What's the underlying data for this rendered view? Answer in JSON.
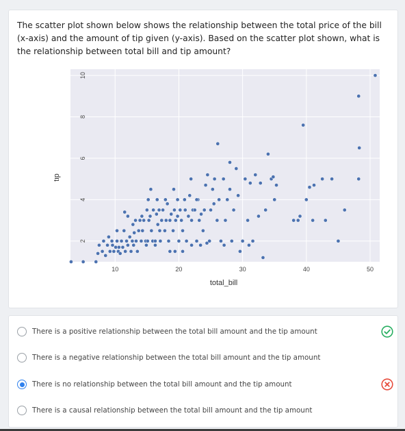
{
  "question": {
    "text": "The scatter plot shown below shows the relationship between the total price of the bill (x-axis) and the amount of tip given (y-axis). Based on the scatter plot shown, what is the relationship between total bill and tip amount?"
  },
  "chart_data": {
    "type": "scatter",
    "xlabel": "total_bill",
    "ylabel": "tip",
    "xlim": [
      3,
      51.5
    ],
    "ylim": [
      1,
      10.3
    ],
    "xticks": [
      "10",
      "20",
      "30",
      "40",
      "50"
    ],
    "yticks": [
      "2",
      "4",
      "6",
      "8",
      "10"
    ],
    "grid": true,
    "colors": {
      "point": "#4c72b0",
      "point_edge": "#ffffff",
      "background": "#eaeaf2",
      "grid": "#ffffff"
    },
    "points": [
      [
        3.1,
        1.0
      ],
      [
        5.0,
        1.0
      ],
      [
        7.0,
        1.0
      ],
      [
        7.3,
        1.4
      ],
      [
        7.5,
        1.8
      ],
      [
        8.0,
        1.5
      ],
      [
        8.2,
        2.0
      ],
      [
        8.5,
        1.3
      ],
      [
        8.8,
        1.8
      ],
      [
        9.0,
        2.2
      ],
      [
        9.2,
        1.5
      ],
      [
        9.5,
        2.0
      ],
      [
        9.6,
        1.8
      ],
      [
        9.8,
        1.5
      ],
      [
        10.1,
        1.7
      ],
      [
        10.3,
        2.0
      ],
      [
        10.5,
        1.5
      ],
      [
        10.6,
        1.7
      ],
      [
        10.8,
        1.4
      ],
      [
        11.0,
        2.0
      ],
      [
        11.2,
        1.7
      ],
      [
        11.4,
        2.5
      ],
      [
        11.6,
        1.5
      ],
      [
        11.8,
        2.0
      ],
      [
        12.0,
        1.8
      ],
      [
        12.3,
        2.2
      ],
      [
        12.5,
        1.5
      ],
      [
        12.7,
        2.0
      ],
      [
        12.9,
        1.8
      ],
      [
        13.0,
        2.4
      ],
      [
        13.3,
        2.0
      ],
      [
        13.5,
        1.5
      ],
      [
        13.7,
        2.5
      ],
      [
        13.9,
        3.0
      ],
      [
        14.1,
        2.0
      ],
      [
        14.3,
        2.5
      ],
      [
        14.5,
        3.0
      ],
      [
        14.8,
        2.0
      ],
      [
        15.0,
        3.5
      ],
      [
        15.1,
        2.0
      ],
      [
        15.3,
        3.0
      ],
      [
        15.5,
        3.2
      ],
      [
        15.7,
        2.5
      ],
      [
        15.9,
        2.0
      ],
      [
        16.0,
        3.5
      ],
      [
        16.3,
        2.0
      ],
      [
        16.5,
        3.3
      ],
      [
        16.7,
        2.8
      ],
      [
        16.9,
        3.5
      ],
      [
        17.1,
        2.0
      ],
      [
        17.3,
        3.0
      ],
      [
        17.5,
        3.5
      ],
      [
        17.8,
        2.5
      ],
      [
        18.0,
        3.0
      ],
      [
        18.2,
        3.8
      ],
      [
        18.4,
        2.0
      ],
      [
        18.6,
        3.0
      ],
      [
        18.8,
        3.3
      ],
      [
        19.1,
        2.5
      ],
      [
        19.3,
        3.5
      ],
      [
        19.5,
        3.0
      ],
      [
        19.8,
        4.0
      ],
      [
        20.0,
        2.0
      ],
      [
        20.2,
        3.5
      ],
      [
        20.4,
        3.0
      ],
      [
        20.6,
        2.5
      ],
      [
        20.9,
        4.0
      ],
      [
        21.0,
        3.5
      ],
      [
        21.2,
        2.0
      ],
      [
        21.5,
        3.2
      ],
      [
        21.7,
        4.2
      ],
      [
        22.0,
        3.0
      ],
      [
        22.2,
        3.5
      ],
      [
        22.5,
        3.5
      ],
      [
        22.8,
        2.0
      ],
      [
        23.0,
        4.0
      ],
      [
        23.2,
        3.0
      ],
      [
        23.5,
        3.3
      ],
      [
        23.8,
        2.5
      ],
      [
        24.0,
        3.5
      ],
      [
        24.2,
        4.7
      ],
      [
        24.5,
        5.2
      ],
      [
        24.8,
        2.0
      ],
      [
        25.0,
        3.5
      ],
      [
        25.3,
        4.5
      ],
      [
        25.6,
        5.0
      ],
      [
        26.0,
        3.0
      ],
      [
        26.3,
        4.0
      ],
      [
        26.6,
        2.0
      ],
      [
        27.0,
        5.0
      ],
      [
        27.3,
        3.0
      ],
      [
        27.6,
        4.0
      ],
      [
        28.0,
        4.5
      ],
      [
        28.3,
        2.0
      ],
      [
        28.6,
        3.5
      ],
      [
        29.0,
        5.5
      ],
      [
        29.3,
        4.2
      ],
      [
        29.6,
        1.5
      ],
      [
        30.0,
        2.0
      ],
      [
        30.4,
        5.0
      ],
      [
        30.8,
        3.0
      ],
      [
        31.2,
        4.8
      ],
      [
        31.6,
        2.0
      ],
      [
        32.0,
        5.2
      ],
      [
        32.5,
        3.2
      ],
      [
        32.8,
        4.8
      ],
      [
        33.2,
        1.2
      ],
      [
        33.6,
        3.5
      ],
      [
        34.0,
        6.2
      ],
      [
        34.5,
        5.0
      ],
      [
        35.0,
        4.0
      ],
      [
        35.3,
        4.7
      ],
      [
        38.0,
        3.0
      ],
      [
        38.7,
        3.0
      ],
      [
        39.0,
        3.2
      ],
      [
        40.0,
        4.0
      ],
      [
        40.5,
        4.6
      ],
      [
        41.0,
        3.0
      ],
      [
        41.2,
        4.7
      ],
      [
        42.5,
        5.0
      ],
      [
        43.0,
        3.0
      ],
      [
        44.0,
        5.0
      ],
      [
        45.0,
        2.0
      ],
      [
        46.0,
        3.5
      ],
      [
        48.2,
        5.0
      ],
      [
        48.3,
        6.5
      ],
      [
        48.2,
        9.0
      ],
      [
        50.8,
        10.0
      ],
      [
        14.2,
        3.2
      ],
      [
        11.5,
        3.4
      ],
      [
        12.8,
        2.8
      ],
      [
        16.6,
        4.0
      ],
      [
        15.2,
        4.0
      ],
      [
        19.4,
        1.5
      ],
      [
        10.3,
        2.5
      ],
      [
        15.6,
        4.5
      ],
      [
        17.9,
        4.0
      ],
      [
        22.0,
        1.8
      ],
      [
        25.5,
        3.8
      ],
      [
        20.6,
        1.5
      ],
      [
        24.4,
        1.9
      ],
      [
        21.9,
        5.0
      ],
      [
        23.4,
        1.8
      ],
      [
        19.2,
        4.5
      ],
      [
        18.6,
        1.5
      ],
      [
        13.2,
        3.0
      ],
      [
        14.9,
        1.8
      ],
      [
        27.1,
        1.8
      ],
      [
        26.1,
        6.7
      ],
      [
        22.8,
        4.0
      ],
      [
        19.8,
        3.2
      ],
      [
        17.0,
        2.5
      ],
      [
        16.3,
        1.8
      ],
      [
        28.0,
        5.8
      ],
      [
        31.0,
        1.8
      ],
      [
        34.8,
        5.1
      ],
      [
        39.5,
        7.6
      ],
      [
        12.0,
        3.2
      ]
    ]
  },
  "options": [
    {
      "label": "There is a positive relationship between the total bill amount and the tip amount",
      "selected": false,
      "status": "correct-icon"
    },
    {
      "label": "There is a negative relationship between the total bill amount and the tip amount",
      "selected": false,
      "status": ""
    },
    {
      "label": "There is no relationship between the total bill amount and the tip amount",
      "selected": true,
      "status": "wrong-icon"
    },
    {
      "label": "There is a causal relationship between the total bill amount and the tip amount",
      "selected": false,
      "status": ""
    }
  ],
  "status_colors": {
    "correct": "#27ae60",
    "wrong": "#e74c3c",
    "selected": "#2f80ed"
  }
}
